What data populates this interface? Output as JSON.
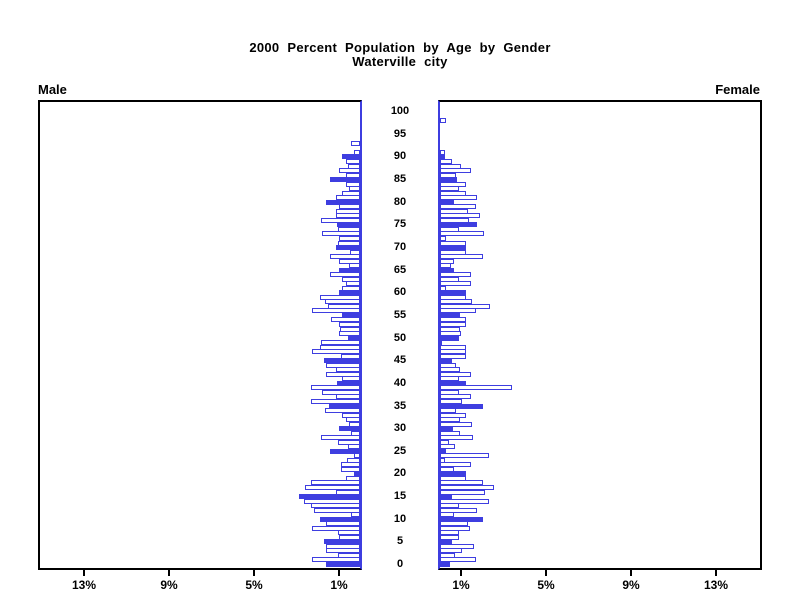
{
  "chart_data": {
    "type": "bar",
    "variant": "population-pyramid",
    "title": "2000 Percent Population by Age by Gender",
    "subtitle": "Waterville city",
    "left_label": "Male",
    "right_label": "Female",
    "age_axis": {
      "min": 0,
      "max": 100,
      "tick_step": 5,
      "tick_labels": [
        "0",
        "5",
        "10",
        "15",
        "20",
        "25",
        "30",
        "35",
        "40",
        "45",
        "50",
        "55",
        "60",
        "65",
        "70",
        "75",
        "80",
        "85",
        "90",
        "95",
        "100"
      ]
    },
    "percent_axis": {
      "tick_values": [
        1,
        5,
        9,
        13
      ],
      "tick_labels": [
        "1%",
        "5%",
        "9%",
        "13%"
      ],
      "max_percent": 15.2
    },
    "bar_style_rule": "ages that are multiples of 5 drawn solid filled; all other single-year ages drawn hollow (white with blue outline)",
    "legend_position": "none",
    "grid": false,
    "colors": {
      "bar_blue": "#3E3EE0",
      "axis_black": "#000000",
      "background": "#FFFFFF"
    },
    "x_unit": "percent of population",
    "y_unit": "age in single years",
    "series": [
      {
        "name": "Male",
        "values": [
          1.6,
          2.25,
          1.05,
          1.6,
          1.6,
          1.7,
          1.0,
          1.05,
          2.25,
          1.6,
          1.9,
          0.4,
          2.15,
          2.3,
          2.65,
          2.85,
          1.15,
          2.6,
          2.3,
          0.65,
          0.3,
          0.9,
          0.9,
          0.6,
          0.3,
          1.4,
          0.55,
          1.05,
          1.85,
          0.4,
          1.0,
          0.5,
          0.65,
          0.85,
          1.65,
          1.45,
          2.3,
          1.15,
          1.8,
          2.3,
          1.1,
          0.85,
          1.6,
          1.15,
          1.6,
          1.7,
          0.9,
          2.25,
          1.9,
          1.85,
          0.55,
          1.0,
          0.95,
          1.0,
          1.35,
          0.85,
          2.25,
          1.5,
          1.65,
          1.9,
          1.0,
          0.85,
          0.65,
          0.85,
          1.4,
          1.0,
          0.5,
          1.0,
          1.4,
          0.45,
          1.15,
          1.05,
          1.0,
          1.8,
          1.05,
          1.1,
          1.85,
          1.15,
          1.15,
          1.0,
          1.6,
          1.15,
          0.85,
          0.5,
          0.65,
          1.4,
          0.65,
          1.0,
          0.55,
          0.65,
          0.85,
          0.3,
          0,
          0.4,
          0,
          0,
          0,
          0,
          0,
          0,
          0
        ]
      },
      {
        "name": "Female",
        "values": [
          0.45,
          1.7,
          0.7,
          1.05,
          1.6,
          0.55,
          0.9,
          0.9,
          1.4,
          1.3,
          2.0,
          0.65,
          1.75,
          0.9,
          2.3,
          0.55,
          2.1,
          2.55,
          2.0,
          1.2,
          1.2,
          0.65,
          1.45,
          0.25,
          2.3,
          0.27,
          0.7,
          0.4,
          1.55,
          0.95,
          0.6,
          1.5,
          0.95,
          1.2,
          0.75,
          2.0,
          1.05,
          1.45,
          0.9,
          3.4,
          1.2,
          0.9,
          1.45,
          0.95,
          0.75,
          0.55,
          1.2,
          1.2,
          1.2,
          0.1,
          0.9,
          1.0,
          0.95,
          1.2,
          1.2,
          0.95,
          1.7,
          2.35,
          1.5,
          1.2,
          1.2,
          0.3,
          1.45,
          0.9,
          1.45,
          0.65,
          0.5,
          0.65,
          2.0,
          1.2,
          1.2,
          1.2,
          0.3,
          2.05,
          0.9,
          1.75,
          1.35,
          1.9,
          1.3,
          1.7,
          0.65,
          1.75,
          1.2,
          0.9,
          1.2,
          0.8,
          0.75,
          1.45,
          1.0,
          0.55,
          0.25,
          0.25,
          0,
          0,
          0,
          0,
          0,
          0,
          0.3,
          0,
          0
        ]
      }
    ]
  }
}
